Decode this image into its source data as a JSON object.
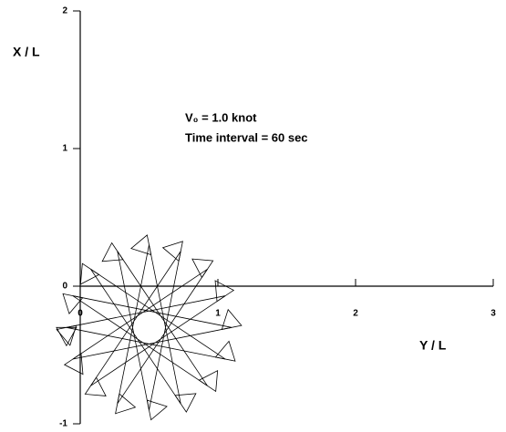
{
  "chart_data": {
    "type": "line",
    "annotations": [
      "V₀ = 1.0  knot",
      "Time interval = 60 sec"
    ],
    "xlabel": "Y / L",
    "ylabel": "X / L",
    "x": [
      -0.1,
      1.054,
      0.076,
      0.73,
      0.5,
      0.27,
      0.924,
      -0.054,
      1.1,
      -0.054,
      0.924,
      0.27,
      0.5,
      0.73,
      0.076,
      1.054,
      -0.1
    ],
    "series": [
      {
        "color": "#000000",
        "values": [
          -0.3,
          -0.07,
          -0.724,
          0.254,
          -0.9,
          0.254,
          -0.724,
          -0.07,
          -0.3,
          -0.53,
          0.124,
          -0.854,
          0.3,
          -0.854,
          0.124,
          -0.53,
          -0.3
        ]
      }
    ],
    "xlim": [
      0,
      3
    ],
    "ylim": [
      -1,
      2
    ],
    "xticks": [
      0,
      1,
      2,
      3
    ],
    "yticks": [
      -1,
      0,
      1,
      2
    ]
  }
}
